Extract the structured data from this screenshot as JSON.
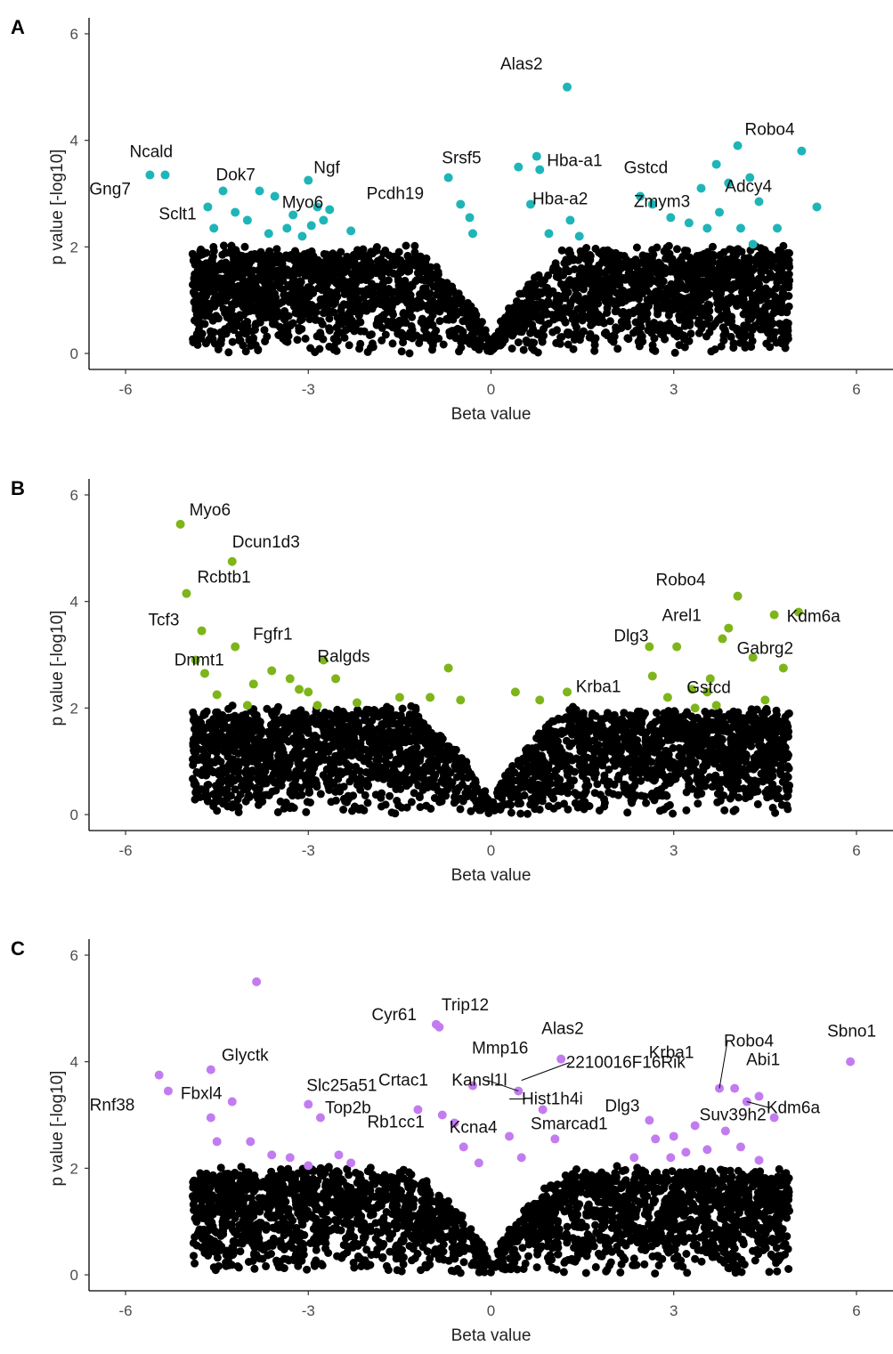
{
  "chart_data": [
    {
      "panel": "A",
      "type": "scatter",
      "xlabel": "Beta value",
      "ylabel": "p value [-log10]",
      "xlim": [
        -6.6,
        6.6
      ],
      "ylim": [
        -0.3,
        6.3
      ],
      "xticks": [
        -6,
        -3,
        0,
        3,
        6
      ],
      "yticks": [
        0,
        2,
        4,
        6
      ],
      "grid": false,
      "highlight_color": "#1FB5B8",
      "background_color": "#000000",
      "highlighted_points": [
        [
          -5.6,
          3.35
        ],
        [
          -5.35,
          3.35
        ],
        [
          -4.65,
          2.75
        ],
        [
          -4.4,
          3.05
        ],
        [
          -4.2,
          2.65
        ],
        [
          -3.8,
          3.05
        ],
        [
          -3.55,
          2.95
        ],
        [
          -3.25,
          2.6
        ],
        [
          -3.0,
          3.25
        ],
        [
          -2.95,
          2.4
        ],
        [
          -2.85,
          2.75
        ],
        [
          -2.65,
          2.7
        ],
        [
          -2.3,
          2.3
        ],
        [
          -4.55,
          2.35
        ],
        [
          -4.0,
          2.5
        ],
        [
          -3.65,
          2.25
        ],
        [
          -3.35,
          2.35
        ],
        [
          -3.1,
          2.2
        ],
        [
          -2.75,
          2.5
        ],
        [
          -0.7,
          3.3
        ],
        [
          -0.5,
          2.8
        ],
        [
          -0.35,
          2.55
        ],
        [
          -0.3,
          2.25
        ],
        [
          0.45,
          3.5
        ],
        [
          0.75,
          3.7
        ],
        [
          0.8,
          3.45
        ],
        [
          0.65,
          2.8
        ],
        [
          1.25,
          5.0
        ],
        [
          1.3,
          2.5
        ],
        [
          0.95,
          2.25
        ],
        [
          1.45,
          2.2
        ],
        [
          2.45,
          2.95
        ],
        [
          2.65,
          2.8
        ],
        [
          2.95,
          2.55
        ],
        [
          3.25,
          2.45
        ],
        [
          3.45,
          3.1
        ],
        [
          3.7,
          3.55
        ],
        [
          3.9,
          3.2
        ],
        [
          4.05,
          3.9
        ],
        [
          4.25,
          3.3
        ],
        [
          4.4,
          2.85
        ],
        [
          4.7,
          2.35
        ],
        [
          5.1,
          3.8
        ],
        [
          5.35,
          2.75
        ],
        [
          3.55,
          2.35
        ],
        [
          3.75,
          2.65
        ],
        [
          4.1,
          2.35
        ],
        [
          4.3,
          2.05
        ]
      ],
      "labels": [
        {
          "text": "Alas2",
          "x": 1.25,
          "y": 5.0
        },
        {
          "text": "Ncald",
          "x": -5.35,
          "y": 3.35
        },
        {
          "text": "Gng7",
          "x": -5.6,
          "y": 3.35
        },
        {
          "text": "Dok7",
          "x": -4.4,
          "y": 3.05
        },
        {
          "text": "Sclt1",
          "x": -4.65,
          "y": 2.75
        },
        {
          "text": "Ngf",
          "x": -3.0,
          "y": 3.25
        },
        {
          "text": "Myo6",
          "x": -2.95,
          "y": 2.4
        },
        {
          "text": "Pcdh19",
          "x": -0.7,
          "y": 3.3
        },
        {
          "text": "Srsf5",
          "x": 0.45,
          "y": 3.5
        },
        {
          "text": "Hba-a1",
          "x": 0.8,
          "y": 3.45
        },
        {
          "text": "Hba-a2",
          "x": 0.65,
          "y": 2.8
        },
        {
          "text": "Robo4",
          "x": 4.05,
          "y": 3.9
        },
        {
          "text": "Gstcd",
          "x": 3.7,
          "y": 3.55
        },
        {
          "text": "Adcy4",
          "x": 3.9,
          "y": 3.2
        },
        {
          "text": "Zmym3",
          "x": 3.25,
          "y": 2.45
        }
      ]
    },
    {
      "panel": "B",
      "type": "scatter",
      "xlabel": "Beta value",
      "ylabel": "p value [-log10]",
      "xlim": [
        -6.6,
        6.6
      ],
      "ylim": [
        -0.3,
        6.3
      ],
      "xticks": [
        -6,
        -3,
        0,
        3,
        6
      ],
      "yticks": [
        0,
        2,
        4,
        6
      ],
      "grid": false,
      "highlight_color": "#7DB51A",
      "background_color": "#000000",
      "highlighted_points": [
        [
          -5.1,
          5.45
        ],
        [
          -4.25,
          4.75
        ],
        [
          -5.0,
          4.15
        ],
        [
          -4.75,
          3.45
        ],
        [
          -4.85,
          2.9
        ],
        [
          -4.7,
          2.65
        ],
        [
          -4.2,
          3.15
        ],
        [
          -3.9,
          2.45
        ],
        [
          -3.3,
          2.55
        ],
        [
          -3.15,
          2.35
        ],
        [
          -3.0,
          2.3
        ],
        [
          -2.75,
          2.9
        ],
        [
          -2.55,
          2.55
        ],
        [
          -2.2,
          2.1
        ],
        [
          -4.5,
          2.25
        ],
        [
          -4.0,
          2.05
        ],
        [
          -3.6,
          2.7
        ],
        [
          -2.85,
          2.05
        ],
        [
          -1.5,
          2.2
        ],
        [
          -1.0,
          2.2
        ],
        [
          -0.7,
          2.75
        ],
        [
          -0.5,
          2.15
        ],
        [
          0.4,
          2.3
        ],
        [
          0.8,
          2.15
        ],
        [
          1.25,
          2.3
        ],
        [
          2.6,
          3.15
        ],
        [
          2.65,
          2.6
        ],
        [
          3.05,
          3.15
        ],
        [
          3.3,
          2.35
        ],
        [
          3.6,
          2.55
        ],
        [
          3.8,
          3.3
        ],
        [
          4.05,
          4.1
        ],
        [
          4.65,
          3.75
        ],
        [
          5.05,
          3.8
        ],
        [
          3.9,
          3.5
        ],
        [
          4.3,
          2.95
        ],
        [
          4.8,
          2.75
        ],
        [
          4.5,
          2.15
        ],
        [
          3.35,
          2.0
        ],
        [
          3.55,
          2.3
        ],
        [
          2.9,
          2.2
        ],
        [
          3.7,
          2.05
        ]
      ],
      "labels": [
        {
          "text": "Myo6",
          "x": -5.1,
          "y": 5.45
        },
        {
          "text": "Dcun1d3",
          "x": -4.25,
          "y": 4.75
        },
        {
          "text": "Rcbtb1",
          "x": -5.0,
          "y": 4.15
        },
        {
          "text": "Tcf3",
          "x": -4.75,
          "y": 3.45
        },
        {
          "text": "Dnmt1",
          "x": -4.85,
          "y": 2.9
        },
        {
          "text": "Fgfr1",
          "x": -4.2,
          "y": 3.15
        },
        {
          "text": "Ralgds",
          "x": -2.75,
          "y": 2.9
        },
        {
          "text": "Robo4",
          "x": 4.05,
          "y": 4.1
        },
        {
          "text": "Kdm6a",
          "x": 4.65,
          "y": 3.75
        },
        {
          "text": "Dlg3",
          "x": 2.6,
          "y": 3.15
        },
        {
          "text": "Arel1",
          "x": 3.8,
          "y": 3.3
        },
        {
          "text": "Gabrg2",
          "x": 4.3,
          "y": 2.95
        },
        {
          "text": "Krba1",
          "x": 2.05,
          "y": 2.4
        },
        {
          "text": "Gstcd",
          "x": 3.3,
          "y": 2.35
        }
      ]
    },
    {
      "panel": "C",
      "type": "scatter",
      "xlabel": "Beta value",
      "ylabel": "p value [-log10]",
      "xlim": [
        -6.6,
        6.6
      ],
      "ylim": [
        -0.3,
        6.3
      ],
      "xticks": [
        -6,
        -3,
        0,
        3,
        6
      ],
      "yticks": [
        0,
        2,
        4,
        6
      ],
      "grid": false,
      "highlight_color": "#C27CF0",
      "background_color": "#000000",
      "highlighted_points": [
        [
          -3.85,
          5.5
        ],
        [
          -5.45,
          3.75
        ],
        [
          -5.3,
          3.45
        ],
        [
          -4.6,
          3.85
        ],
        [
          -4.25,
          3.25
        ],
        [
          -4.6,
          2.95
        ],
        [
          -4.5,
          2.5
        ],
        [
          -3.95,
          2.5
        ],
        [
          -3.6,
          2.25
        ],
        [
          -3.0,
          3.2
        ],
        [
          -2.8,
          2.95
        ],
        [
          -2.5,
          2.25
        ],
        [
          -2.3,
          2.1
        ],
        [
          -3.3,
          2.2
        ],
        [
          -3.0,
          2.05
        ],
        [
          -1.2,
          3.1
        ],
        [
          -0.9,
          4.7
        ],
        [
          -0.85,
          4.65
        ],
        [
          -0.8,
          3.0
        ],
        [
          -0.3,
          3.55
        ],
        [
          -0.6,
          2.85
        ],
        [
          -0.45,
          2.4
        ],
        [
          -0.2,
          2.1
        ],
        [
          0.3,
          2.6
        ],
        [
          0.45,
          3.45
        ],
        [
          0.85,
          3.1
        ],
        [
          1.15,
          4.05
        ],
        [
          0.5,
          2.2
        ],
        [
          1.05,
          2.55
        ],
        [
          2.6,
          2.9
        ],
        [
          2.7,
          2.55
        ],
        [
          3.0,
          2.6
        ],
        [
          3.35,
          2.8
        ],
        [
          3.75,
          3.5
        ],
        [
          4.0,
          3.5
        ],
        [
          4.2,
          3.25
        ],
        [
          4.4,
          3.35
        ],
        [
          4.65,
          2.95
        ],
        [
          4.4,
          2.15
        ],
        [
          5.9,
          4.0
        ],
        [
          3.55,
          2.35
        ],
        [
          3.85,
          2.7
        ],
        [
          4.1,
          2.4
        ],
        [
          2.35,
          2.2
        ],
        [
          2.95,
          2.2
        ],
        [
          3.2,
          2.3
        ]
      ],
      "labels": [
        {
          "text": "Cyr61",
          "x": -0.85,
          "y": 4.65
        },
        {
          "text": "Trip12",
          "x": -0.9,
          "y": 4.7
        },
        {
          "text": "Alas2",
          "x": 1.15,
          "y": 4.05
        },
        {
          "text": "Mmp16",
          "x": -0.3,
          "y": 3.95
        },
        {
          "text": "Crtac1",
          "x": -0.3,
          "y": 3.55
        },
        {
          "text": "2210016F16Rik",
          "x": 0.5,
          "y": 3.65
        },
        {
          "text": "Kansl1l",
          "x": 0.45,
          "y": 3.45
        },
        {
          "text": "Hist1h4i",
          "x": 0.3,
          "y": 3.3
        },
        {
          "text": "Kcna4",
          "x": -0.45,
          "y": 3.05
        },
        {
          "text": "Glyctk",
          "x": -4.6,
          "y": 3.85
        },
        {
          "text": "Rnf38",
          "x": -5.45,
          "y": 3.75
        },
        {
          "text": "Fbxl4",
          "x": -5.3,
          "y": 3.45
        },
        {
          "text": "Slc25a51",
          "x": -3.0,
          "y": 3.2
        },
        {
          "text": "Top2b",
          "x": -2.8,
          "y": 2.95
        },
        {
          "text": "Rb1cc1",
          "x": -0.6,
          "y": 2.85
        },
        {
          "text": "Smarcad1",
          "x": 0.3,
          "y": 2.6
        },
        {
          "text": "Dlg3",
          "x": 2.6,
          "y": 2.9
        },
        {
          "text": "Krba1",
          "x": 3.0,
          "y": 3.4
        },
        {
          "text": "Robo4",
          "x": 3.75,
          "y": 3.5
        },
        {
          "text": "Abi1",
          "x": 4.0,
          "y": 3.5
        },
        {
          "text": "Kdm6a",
          "x": 4.2,
          "y": 3.25
        },
        {
          "text": "Suv39h2",
          "x": 3.35,
          "y": 2.8
        },
        {
          "text": "Sbno1",
          "x": 5.9,
          "y": 4.0
        }
      ]
    }
  ]
}
